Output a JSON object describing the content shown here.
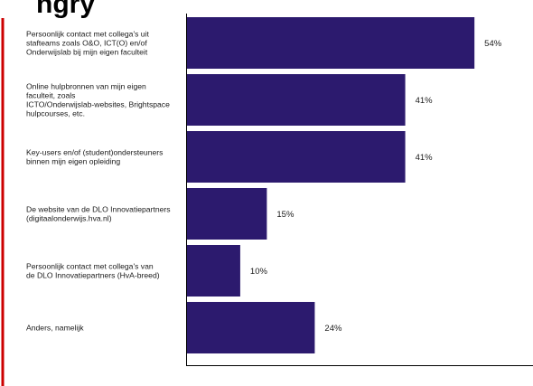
{
  "colors": {
    "bar": "#2c1a6e",
    "frame": "#cc0000",
    "axis": "#000000"
  },
  "title_fragment": "ngry",
  "chart_data": {
    "type": "bar",
    "orientation": "horizontal",
    "value_unit": "%",
    "xlim": [
      0,
      65
    ],
    "grid": false,
    "categories": [
      "Persoonlijk contact met collega's uit stafteams zoals O&O, ICT(O) en/of Onderwijslab bij mijn eigen faculteit",
      "Online hulpbronnen van mijn eigen faculteit, zoals ICTO/Onderwijslab-websites, Brightspace hulpcourses, etc.",
      "Key-users en/of (student)ondersteuners binnen mijn eigen opleiding",
      "De website van de DLO Innovatiepartners (digitaalonderwijs.hva.nl)",
      "Persoonlijk contact met collega's van de DLO Innovatiepartners (HvA-breed)",
      "Anders, namelijk"
    ],
    "category_lines": [
      [
        "Persoonlijk contact met collega's uit",
        "stafteams zoals O&O, ICT(O) en/of",
        "Onderwijslab bij mijn eigen faculteit"
      ],
      [
        "Online hulpbronnen van mijn eigen",
        "faculteit, zoals",
        "ICTO/Onderwijslab-websites, Brightspace",
        "hulpcourses, etc."
      ],
      [
        "Key-users en/of (student)ondersteuners",
        "binnen mijn eigen opleiding"
      ],
      [
        "De website van de DLO Innovatiepartners",
        "(digitaalonderwijs.hva.nl)"
      ],
      [
        "Persoonlijk contact met collega's van",
        "de DLO Innovatiepartners (HvA-breed)"
      ],
      [
        "Anders, namelijk"
      ]
    ],
    "values": [
      54,
      41,
      41,
      15,
      10,
      24
    ],
    "value_labels": [
      "54%",
      "41%",
      "41%",
      "15%",
      "10%",
      "24%"
    ]
  }
}
